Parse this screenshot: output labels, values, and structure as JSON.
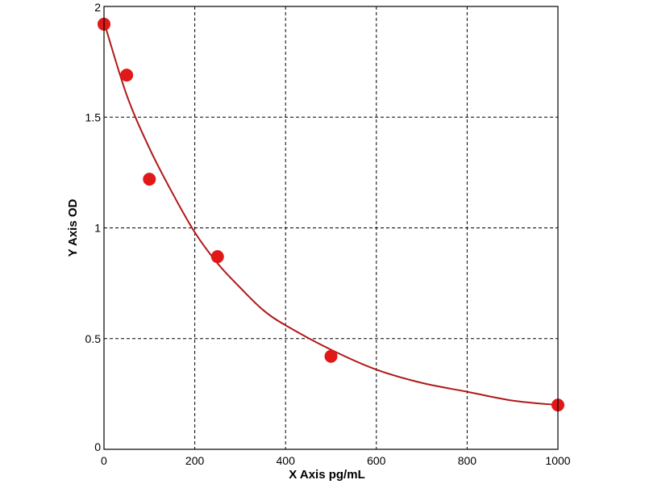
{
  "chart_data": {
    "type": "scatter",
    "title": "",
    "xlabel": "X Axis pg/mL",
    "ylabel": "Y Axis OD",
    "xlim": [
      0,
      1000
    ],
    "ylim": [
      0,
      2
    ],
    "xticks": [
      0,
      200,
      400,
      600,
      800,
      1000
    ],
    "yticks": [
      0,
      0.5,
      1,
      1.5,
      2
    ],
    "xtick_labels": [
      "0",
      "200",
      "400",
      "600",
      "800",
      "1000"
    ],
    "ytick_labels": [
      "0",
      "0.5",
      "1",
      "1.5",
      "2"
    ],
    "grid": true,
    "legend": "none",
    "series": [
      {
        "points": [
          {
            "x": 0,
            "y": 1.92
          },
          {
            "x": 50,
            "y": 1.69
          },
          {
            "x": 100,
            "y": 1.22
          },
          {
            "x": 250,
            "y": 0.87
          },
          {
            "x": 500,
            "y": 0.42
          },
          {
            "x": 1000,
            "y": 0.2
          }
        ],
        "fit_curve": {
          "type": "fitted",
          "points": [
            {
              "x": 0,
              "y": 1.93
            },
            {
              "x": 50,
              "y": 1.6
            },
            {
              "x": 100,
              "y": 1.36
            },
            {
              "x": 150,
              "y": 1.16
            },
            {
              "x": 200,
              "y": 0.98
            },
            {
              "x": 250,
              "y": 0.84
            },
            {
              "x": 300,
              "y": 0.73
            },
            {
              "x": 350,
              "y": 0.63
            },
            {
              "x": 400,
              "y": 0.56
            },
            {
              "x": 500,
              "y": 0.45
            },
            {
              "x": 600,
              "y": 0.36
            },
            {
              "x": 700,
              "y": 0.3
            },
            {
              "x": 800,
              "y": 0.26
            },
            {
              "x": 900,
              "y": 0.22
            },
            {
              "x": 1000,
              "y": 0.2
            }
          ]
        }
      }
    ],
    "colors": {
      "marker": "#e01818",
      "curve": "#b01818",
      "grid": "#000000",
      "frame": "#000000"
    }
  }
}
